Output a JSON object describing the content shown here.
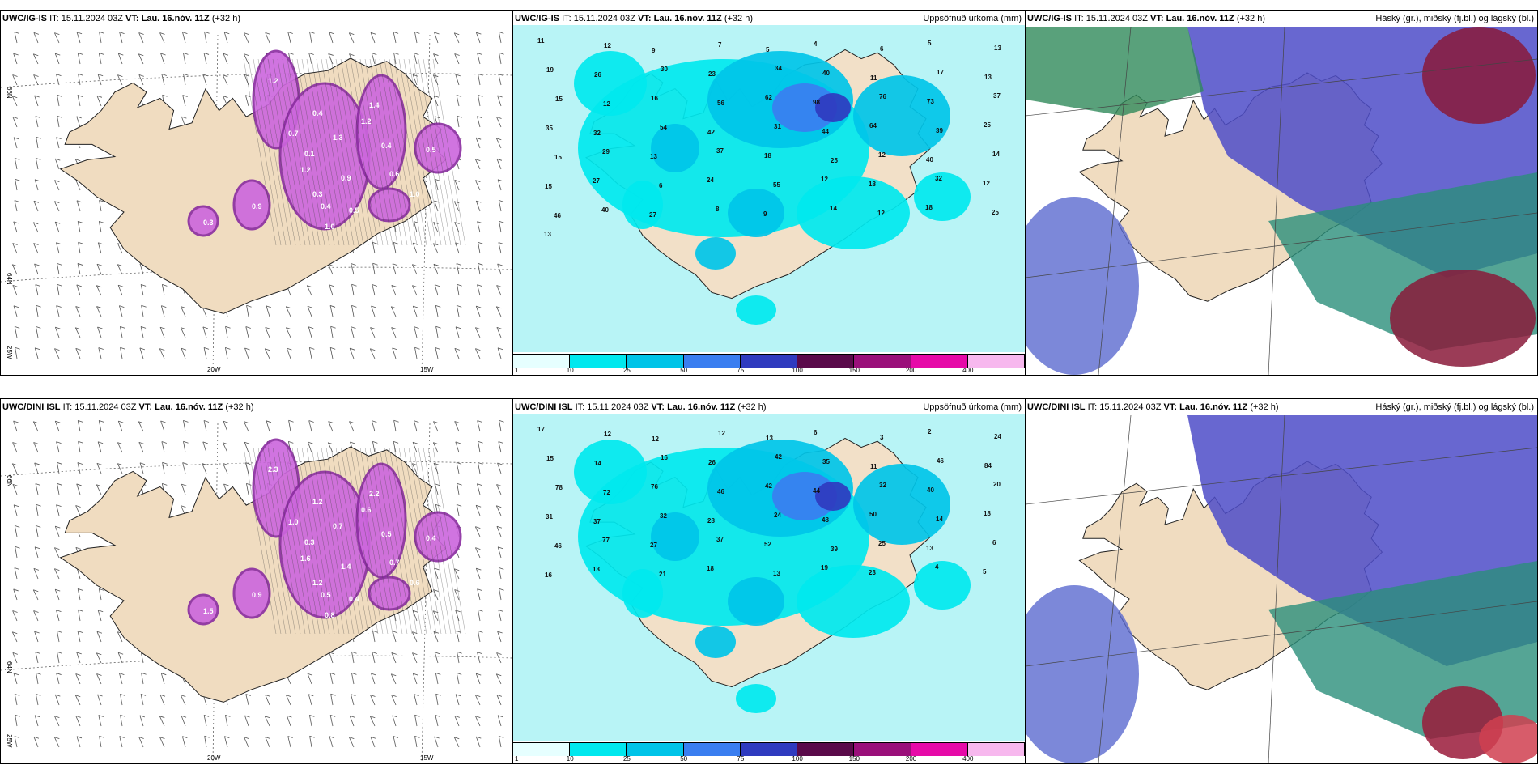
{
  "panels": [
    {
      "id": "top-left",
      "model": "UWC/IG-IS",
      "it": "IT: 15.11.2024 03Z",
      "vt": "VT: Lau. 16.nóv. 11Z",
      "lead": "(+32 h)",
      "right_title": ""
    },
    {
      "id": "top-mid",
      "model": "UWC/IG-IS",
      "it": "IT: 15.11.2024 03Z",
      "vt": "VT: Lau. 16.nóv. 11Z",
      "lead": "(+32 h)",
      "right_title": "Uppsöfnuð úrkoma (mm)"
    },
    {
      "id": "top-right",
      "model": "UWC/IG-IS",
      "it": "IT: 15.11.2024 03Z",
      "vt": "VT: Lau. 16.nóv. 11Z",
      "lead": "(+32 h)",
      "right_title": "Háský (gr.), miðský (fj.bl.) og lágský (bl.)"
    },
    {
      "id": "bot-left",
      "model": "UWC/DINI ISL",
      "it": "IT: 15.11.2024 03Z",
      "vt": "VT: Lau. 16.nóv. 11Z",
      "lead": "(+32 h)",
      "right_title": ""
    },
    {
      "id": "bot-mid",
      "model": "UWC/DINI ISL",
      "it": "IT: 15.11.2024 03Z",
      "vt": "VT: Lau. 16.nóv. 11Z",
      "lead": "(+32 h)",
      "right_title": "Uppsöfnuð úrkoma (mm)"
    },
    {
      "id": "bot-right",
      "model": "UWC/DINI ISL",
      "it": "IT: 15.11.2024 03Z",
      "vt": "VT: Lau. 16.nóv. 11Z",
      "lead": "(+32 h)",
      "right_title": "Háský (gr.), miðský (fj.bl.) og lágský (bl.)"
    }
  ],
  "axis_labels": {
    "lon_20": "20W",
    "lon_15": "15W",
    "lat_66": "66N",
    "lat_64": "64N",
    "lon_25": "25W",
    "lat_64b": "64N"
  },
  "colorbar": {
    "ticks": [
      "1",
      "10",
      "25",
      "50",
      "75",
      "100",
      "150",
      "200",
      "400"
    ],
    "colors": [
      "#e6ffff",
      "#00e8ee",
      "#00c4e8",
      "#3a7ef0",
      "#2f3bbf",
      "#5a0a4a",
      "#9a0f7a",
      "#e60aa8",
      "#f7b8ee"
    ]
  },
  "snow_colors": {
    "fill": "#cc66dd",
    "border": "#8a2ca0"
  },
  "precip": {
    "top": [
      "11",
      "12",
      "9",
      "7",
      "5",
      "4",
      "6",
      "5",
      "13",
      "19",
      "26",
      "30",
      "23",
      "34",
      "40",
      "11",
      "17",
      "13",
      "15",
      "12",
      "16",
      "56",
      "62",
      "98",
      "76",
      "73",
      "37",
      "35",
      "32",
      "54",
      "42",
      "31",
      "44",
      "64",
      "39",
      "25",
      "15",
      "29",
      "13",
      "37",
      "18",
      "25",
      "12",
      "40",
      "14",
      "15",
      "27",
      "6",
      "24",
      "55",
      "12",
      "18",
      "32",
      "12",
      "46",
      "40",
      "27",
      "8",
      "9",
      "14",
      "12",
      "18",
      "25",
      "13"
    ],
    "bot": [
      "17",
      "12",
      "12",
      "12",
      "13",
      "6",
      "3",
      "2",
      "24",
      "15",
      "14",
      "16",
      "26",
      "42",
      "35",
      "11",
      "46",
      "84",
      "78",
      "72",
      "76",
      "46",
      "42",
      "44",
      "32",
      "40",
      "20",
      "31",
      "37",
      "32",
      "28",
      "24",
      "48",
      "50",
      "14",
      "18",
      "46",
      "77",
      "27",
      "37",
      "52",
      "39",
      "25",
      "13",
      "6",
      "16",
      "13",
      "21",
      "18",
      "13",
      "19",
      "23",
      "4",
      "5"
    ]
  },
  "snow_values": {
    "top": [
      "1.2",
      "0.4",
      "1.3",
      "0.9",
      "1.2",
      "0.5",
      "0.3",
      "0.4",
      "1.0",
      "1.4",
      "0.5",
      "0.6",
      "0.7",
      "1.2",
      "1.0",
      "0.4",
      "0.9",
      "0.1",
      "0.3"
    ],
    "bot": [
      "2.3",
      "1.2",
      "0.7",
      "1.4",
      "1.6",
      "0.4",
      "1.2",
      "0.5",
      "0.8",
      "2.2",
      "0.4",
      "0.7",
      "1.0",
      "0.6",
      "0.6",
      "0.5",
      "0.9",
      "0.3",
      "1.5"
    ]
  }
}
